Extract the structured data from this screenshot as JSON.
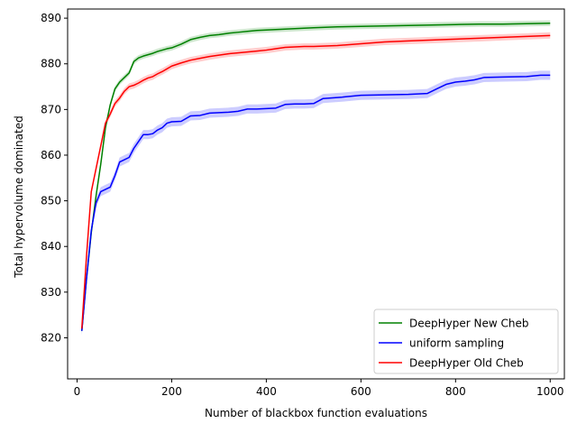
{
  "chart_data": {
    "type": "line",
    "title": "",
    "xlabel": "Number of blackbox function evaluations",
    "ylabel": "Total hypervolume dominated",
    "xlim": [
      -20,
      1030
    ],
    "ylim": [
      811,
      892
    ],
    "xticks": [
      0,
      200,
      400,
      600,
      800,
      1000
    ],
    "yticks": [
      820,
      830,
      840,
      850,
      860,
      870,
      880,
      890
    ],
    "grid": false,
    "legend_position": "lower-right",
    "series": [
      {
        "name": "DeepHyper New Cheb",
        "color": "#008000",
        "band": 0.6,
        "x": [
          10,
          20,
          30,
          40,
          50,
          60,
          70,
          80,
          90,
          100,
          110,
          120,
          130,
          140,
          150,
          160,
          170,
          180,
          190,
          200,
          220,
          240,
          260,
          280,
          300,
          320,
          340,
          360,
          380,
          400,
          420,
          440,
          460,
          480,
          500,
          550,
          600,
          650,
          700,
          750,
          800,
          850,
          900,
          950,
          1000
        ],
        "y": [
          821.5,
          833.0,
          843.0,
          851.0,
          858.0,
          866.0,
          871.0,
          874.5,
          876.0,
          877.0,
          878.0,
          880.5,
          881.3,
          881.7,
          882.0,
          882.3,
          882.7,
          883.0,
          883.3,
          883.5,
          884.3,
          885.3,
          885.8,
          886.2,
          886.4,
          886.7,
          886.9,
          887.1,
          887.3,
          887.4,
          887.5,
          887.6,
          887.7,
          887.8,
          887.9,
          888.1,
          888.2,
          888.3,
          888.4,
          888.5,
          888.6,
          888.7,
          888.7,
          888.8,
          888.9
        ]
      },
      {
        "name": "uniform sampling",
        "color": "#0000ff",
        "band": 1.0,
        "x": [
          10,
          20,
          30,
          40,
          50,
          60,
          70,
          80,
          90,
          100,
          110,
          120,
          130,
          140,
          150,
          160,
          170,
          180,
          190,
          200,
          220,
          240,
          260,
          280,
          300,
          320,
          340,
          360,
          380,
          400,
          420,
          440,
          460,
          480,
          500,
          520,
          560,
          600,
          650,
          700,
          740,
          760,
          780,
          800,
          820,
          840,
          860,
          900,
          950,
          980,
          1000
        ],
        "y": [
          821.5,
          833.0,
          843.5,
          849.5,
          852.0,
          852.5,
          853.0,
          855.5,
          858.5,
          859.0,
          859.5,
          861.5,
          863.0,
          864.5,
          864.5,
          864.7,
          865.5,
          866.0,
          867.0,
          867.3,
          867.4,
          868.6,
          868.7,
          869.2,
          869.3,
          869.4,
          869.6,
          870.1,
          870.1,
          870.2,
          870.3,
          871.1,
          871.2,
          871.2,
          871.3,
          872.4,
          872.7,
          873.1,
          873.2,
          873.3,
          873.5,
          874.5,
          875.5,
          876.0,
          876.2,
          876.5,
          877.0,
          877.1,
          877.2,
          877.5,
          877.5
        ]
      },
      {
        "name": "DeepHyper Old Cheb",
        "color": "#ff0000",
        "band": 0.7,
        "x": [
          10,
          20,
          30,
          40,
          50,
          60,
          70,
          80,
          90,
          100,
          110,
          120,
          130,
          140,
          150,
          160,
          170,
          180,
          190,
          200,
          220,
          240,
          260,
          280,
          300,
          320,
          340,
          360,
          380,
          400,
          420,
          440,
          460,
          480,
          500,
          550,
          600,
          650,
          700,
          750,
          800,
          850,
          900,
          950,
          1000
        ],
        "y": [
          822.0,
          838.0,
          852.0,
          857.0,
          862.0,
          867.0,
          869.0,
          871.3,
          872.5,
          874.0,
          875.0,
          875.3,
          875.8,
          876.4,
          876.9,
          877.2,
          877.8,
          878.3,
          878.9,
          879.5,
          880.2,
          880.8,
          881.2,
          881.6,
          881.9,
          882.2,
          882.4,
          882.6,
          882.8,
          883.0,
          883.3,
          883.6,
          883.7,
          883.8,
          883.8,
          884.0,
          884.4,
          884.8,
          885.0,
          885.2,
          885.4,
          885.6,
          885.8,
          886.0,
          886.2
        ]
      }
    ]
  }
}
